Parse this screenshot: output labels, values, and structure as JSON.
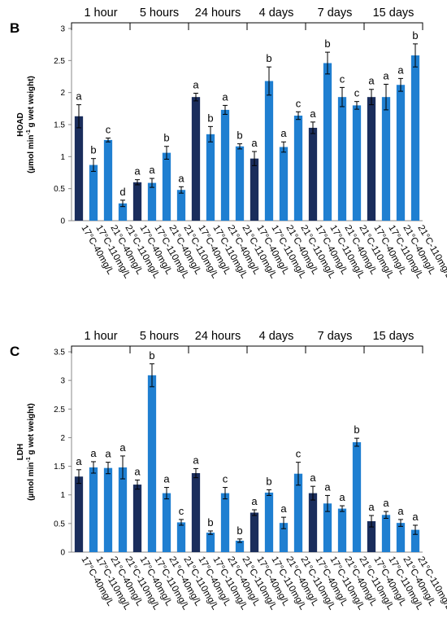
{
  "colors": {
    "dark_bar": "#1a2d5c",
    "light_bar": "#1f7fd1",
    "axis": "#888888",
    "text": "#000000"
  },
  "chart_data": [
    {
      "panel": "B",
      "type": "bar",
      "ylabel_line1": "HOAD",
      "ylabel_line2_pre": "(µmol min",
      "ylabel_line2_sup": "-1",
      "ylabel_line2_post": " g wet weight)",
      "ylim": [
        0,
        3
      ],
      "yticks": [
        "0",
        "0.5",
        "1",
        "1.5",
        "2",
        "2.5",
        "3"
      ],
      "groups": [
        "1 hour",
        "5 hours",
        "24 hours",
        "4 days",
        "7 days",
        "15 days"
      ],
      "categories": [
        "17°C-40mg/L",
        "17°C-110mg/L",
        "21°C-40mg/L",
        "21°C-110mg/L",
        "17°C-40mg/L",
        "17°C-110mg/L",
        "21°C-40mg/L",
        "21°C-110mg/L",
        "17°C-40mg/L",
        "17°C-110mg/L",
        "21°C-40mg/L",
        "21°C-110mg/L",
        "17°C-40mg/L",
        "17°C-110mg/L",
        "21°C-40mg/L",
        "21°C-110mg/L",
        "17°C-40mg/L",
        "17°C-110mg/L",
        "21°C-40mg/L",
        "21°C-110mg/L",
        "17°C-40mg/L",
        "17°C-110mg/L",
        "21°C-40mg/L",
        "21°C-110mg/L"
      ],
      "values": [
        1.63,
        0.87,
        1.26,
        0.27,
        0.6,
        0.59,
        1.06,
        0.48,
        1.93,
        1.35,
        1.73,
        1.16,
        0.97,
        2.18,
        1.15,
        1.64,
        1.45,
        2.46,
        1.93,
        1.8,
        1.93,
        1.93,
        2.12,
        2.58
      ],
      "errors": [
        0.18,
        0.1,
        0.03,
        0.05,
        0.04,
        0.07,
        0.1,
        0.05,
        0.06,
        0.12,
        0.07,
        0.04,
        0.11,
        0.22,
        0.08,
        0.06,
        0.09,
        0.17,
        0.15,
        0.06,
        0.12,
        0.2,
        0.1,
        0.18
      ],
      "annotations": [
        "a",
        "b",
        "c",
        "d",
        "a",
        "a",
        "b",
        "a",
        "a",
        "b",
        "a",
        "b",
        "a",
        "b",
        "a",
        "c",
        "a",
        "b",
        "c",
        "c",
        "a",
        "a",
        "a",
        "b"
      ]
    },
    {
      "panel": "C",
      "type": "bar",
      "ylabel_line1": "LDH",
      "ylabel_line2_pre": "(µmol min",
      "ylabel_line2_sup": "-1",
      "ylabel_line2_post": " g wet weight)",
      "ylim": [
        0,
        3.5
      ],
      "yticks": [
        "0",
        "0.5",
        "1",
        "1.5",
        "2",
        "2.5",
        "3",
        "3.5"
      ],
      "groups": [
        "1 hour",
        "5 hours",
        "24 hours",
        "4 days",
        "7 days",
        "15 days"
      ],
      "categories": [
        "17°C-40mg/L",
        "17°C-110mg/L",
        "21°C-40mg/L",
        "21°C-110mg/L",
        "17°C-40mg/L",
        "17°C-110mg/L",
        "21°C-40mg/L",
        "21°C-110mg/L",
        "17°C-40mg/L",
        "17°C-110mg/L",
        "21°C-40mg/L",
        "21°C-110mg/L",
        "17°C-40mg/L",
        "17°C-110mg/L",
        "21°C-40mg/L",
        "21°C-110mg/L",
        "17°C-40mg/L",
        "17°C-110mg/L",
        "21°C-40mg/L",
        "21°C-110mg/L",
        "17°C-40mg/L",
        "17°C-110mg/L",
        "21°C-40mg/L",
        "21°C-110mg/L"
      ],
      "values": [
        1.32,
        1.48,
        1.47,
        1.48,
        1.18,
        3.09,
        1.03,
        0.52,
        1.38,
        0.34,
        1.03,
        0.2,
        0.69,
        1.04,
        0.51,
        1.37,
        1.03,
        0.85,
        0.76,
        1.92,
        0.54,
        0.65,
        0.51,
        0.39
      ],
      "errors": [
        0.12,
        0.1,
        0.1,
        0.2,
        0.08,
        0.2,
        0.1,
        0.05,
        0.08,
        0.03,
        0.1,
        0.03,
        0.05,
        0.05,
        0.1,
        0.2,
        0.12,
        0.14,
        0.05,
        0.07,
        0.1,
        0.06,
        0.06,
        0.08
      ],
      "annotations": [
        "a",
        "a",
        "a",
        "a",
        "a",
        "b",
        "a",
        "c",
        "a",
        "b",
        "c",
        "b",
        "a",
        "b",
        "a",
        "c",
        "a",
        "a",
        "a",
        "b",
        "a",
        "a",
        "a",
        "a"
      ]
    }
  ]
}
